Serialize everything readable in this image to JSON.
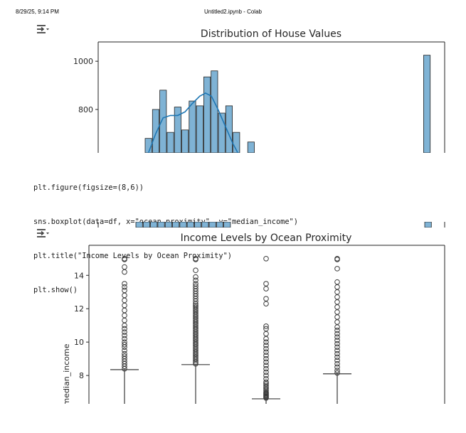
{
  "header": {
    "datetime": "8/29/25, 9:14 PM",
    "page_title": "Untitled2.ipynb - Colab"
  },
  "code_cell": {
    "lines": [
      "plt.figure(figsize=(8,6))",
      "sns.boxplot(data=df, x=\"ocean_proximity\", y=\"median_income\")",
      "plt.title(\"Income Levels by Ocean Proximity\")",
      "plt.show()"
    ]
  },
  "icons": {
    "output_toggle": "output-toggle-icon"
  },
  "colors": {
    "hist_bar": "#7fb3d5",
    "kde_line": "#1f77b4",
    "box_line": "#3a3a3a"
  },
  "chart_data": [
    {
      "type": "bar",
      "title": "Distribution of House Values",
      "xlabel": "",
      "ylabel": "",
      "ylim": [
        620,
        1080
      ],
      "yticks": [
        800,
        1000
      ],
      "bins": [
        {
          "x": 0.0,
          "value": 680
        },
        {
          "x": 1.0,
          "value": 800
        },
        {
          "x": 2.0,
          "value": 880
        },
        {
          "x": 3.0,
          "value": 705
        },
        {
          "x": 4.0,
          "value": 810
        },
        {
          "x": 5.0,
          "value": 715
        },
        {
          "x": 6.0,
          "value": 835
        },
        {
          "x": 7.0,
          "value": 815
        },
        {
          "x": 8.0,
          "value": 935
        },
        {
          "x": 9.0,
          "value": 960
        },
        {
          "x": 10.0,
          "value": 785
        },
        {
          "x": 11.0,
          "value": 815
        },
        {
          "x": 12.0,
          "value": 705
        },
        {
          "x": 14.0,
          "value": 665
        },
        {
          "x": 38.0,
          "value": 1025
        }
      ],
      "kde": [
        {
          "x": 0.0,
          "y": 620
        },
        {
          "x": 1.0,
          "y": 700
        },
        {
          "x": 2.0,
          "y": 765
        },
        {
          "x": 3.0,
          "y": 775
        },
        {
          "x": 4.0,
          "y": 775
        },
        {
          "x": 5.0,
          "y": 790
        },
        {
          "x": 6.0,
          "y": 825
        },
        {
          "x": 7.0,
          "y": 855
        },
        {
          "x": 7.8,
          "y": 868
        },
        {
          "x": 8.6,
          "y": 855
        },
        {
          "x": 9.5,
          "y": 800
        },
        {
          "x": 10.5,
          "y": 730
        },
        {
          "x": 11.5,
          "y": 660
        },
        {
          "x": 12.2,
          "y": 620
        }
      ]
    },
    {
      "type": "box",
      "title": "Income Levels by Ocean Proximity",
      "ylabel": "median_income",
      "ylim": [
        6.3,
        15.8
      ],
      "yticks": [
        8,
        10,
        12,
        14
      ],
      "boxes": [
        {
          "upper_whisker": 8.35,
          "outliers": [
            8.4,
            8.55,
            8.7,
            8.85,
            9.0,
            9.15,
            9.3,
            9.5,
            9.7,
            9.85,
            10.0,
            10.2,
            10.4,
            10.6,
            10.8,
            11.0,
            11.3,
            11.6,
            11.9,
            12.2,
            12.5,
            12.8,
            13.1,
            13.3,
            13.5,
            14.2,
            14.5,
            14.95,
            15.0
          ]
        },
        {
          "upper_whisker": 8.65,
          "outliers": [
            8.7,
            8.8,
            8.9,
            9.0,
            9.1,
            9.2,
            9.3,
            9.4,
            9.5,
            9.6,
            9.7,
            9.8,
            9.9,
            10.0,
            10.1,
            10.2,
            10.3,
            10.4,
            10.5,
            10.6,
            10.7,
            10.8,
            10.9,
            11.0,
            11.1,
            11.2,
            11.3,
            11.4,
            11.5,
            11.6,
            11.7,
            11.8,
            11.9,
            12.0,
            12.1,
            12.2,
            12.3,
            12.45,
            12.6,
            12.75,
            12.9,
            13.05,
            13.2,
            13.35,
            13.5,
            13.7,
            13.9,
            14.3,
            14.95,
            15.0
          ]
        },
        {
          "upper_whisker": 6.6,
          "outliers": [
            6.65,
            6.7,
            6.75,
            6.8,
            6.85,
            6.9,
            6.95,
            7.0,
            7.1,
            7.2,
            7.3,
            7.4,
            7.5,
            7.6,
            7.8,
            8.0,
            8.2,
            8.4,
            8.6,
            8.8,
            9.0,
            9.2,
            9.4,
            9.6,
            9.8,
            10.0,
            10.2,
            10.5,
            10.8,
            10.95,
            12.3,
            12.6,
            13.2,
            13.5,
            15.0
          ]
        },
        {
          "upper_whisker": 8.1,
          "outliers": [
            8.15,
            8.3,
            8.5,
            8.7,
            8.9,
            9.1,
            9.3,
            9.5,
            9.7,
            9.9,
            10.1,
            10.3,
            10.5,
            10.7,
            10.9,
            11.2,
            11.5,
            11.8,
            12.1,
            12.4,
            12.7,
            13.0,
            13.3,
            13.6,
            14.4,
            14.95,
            15.0
          ]
        }
      ]
    }
  ]
}
